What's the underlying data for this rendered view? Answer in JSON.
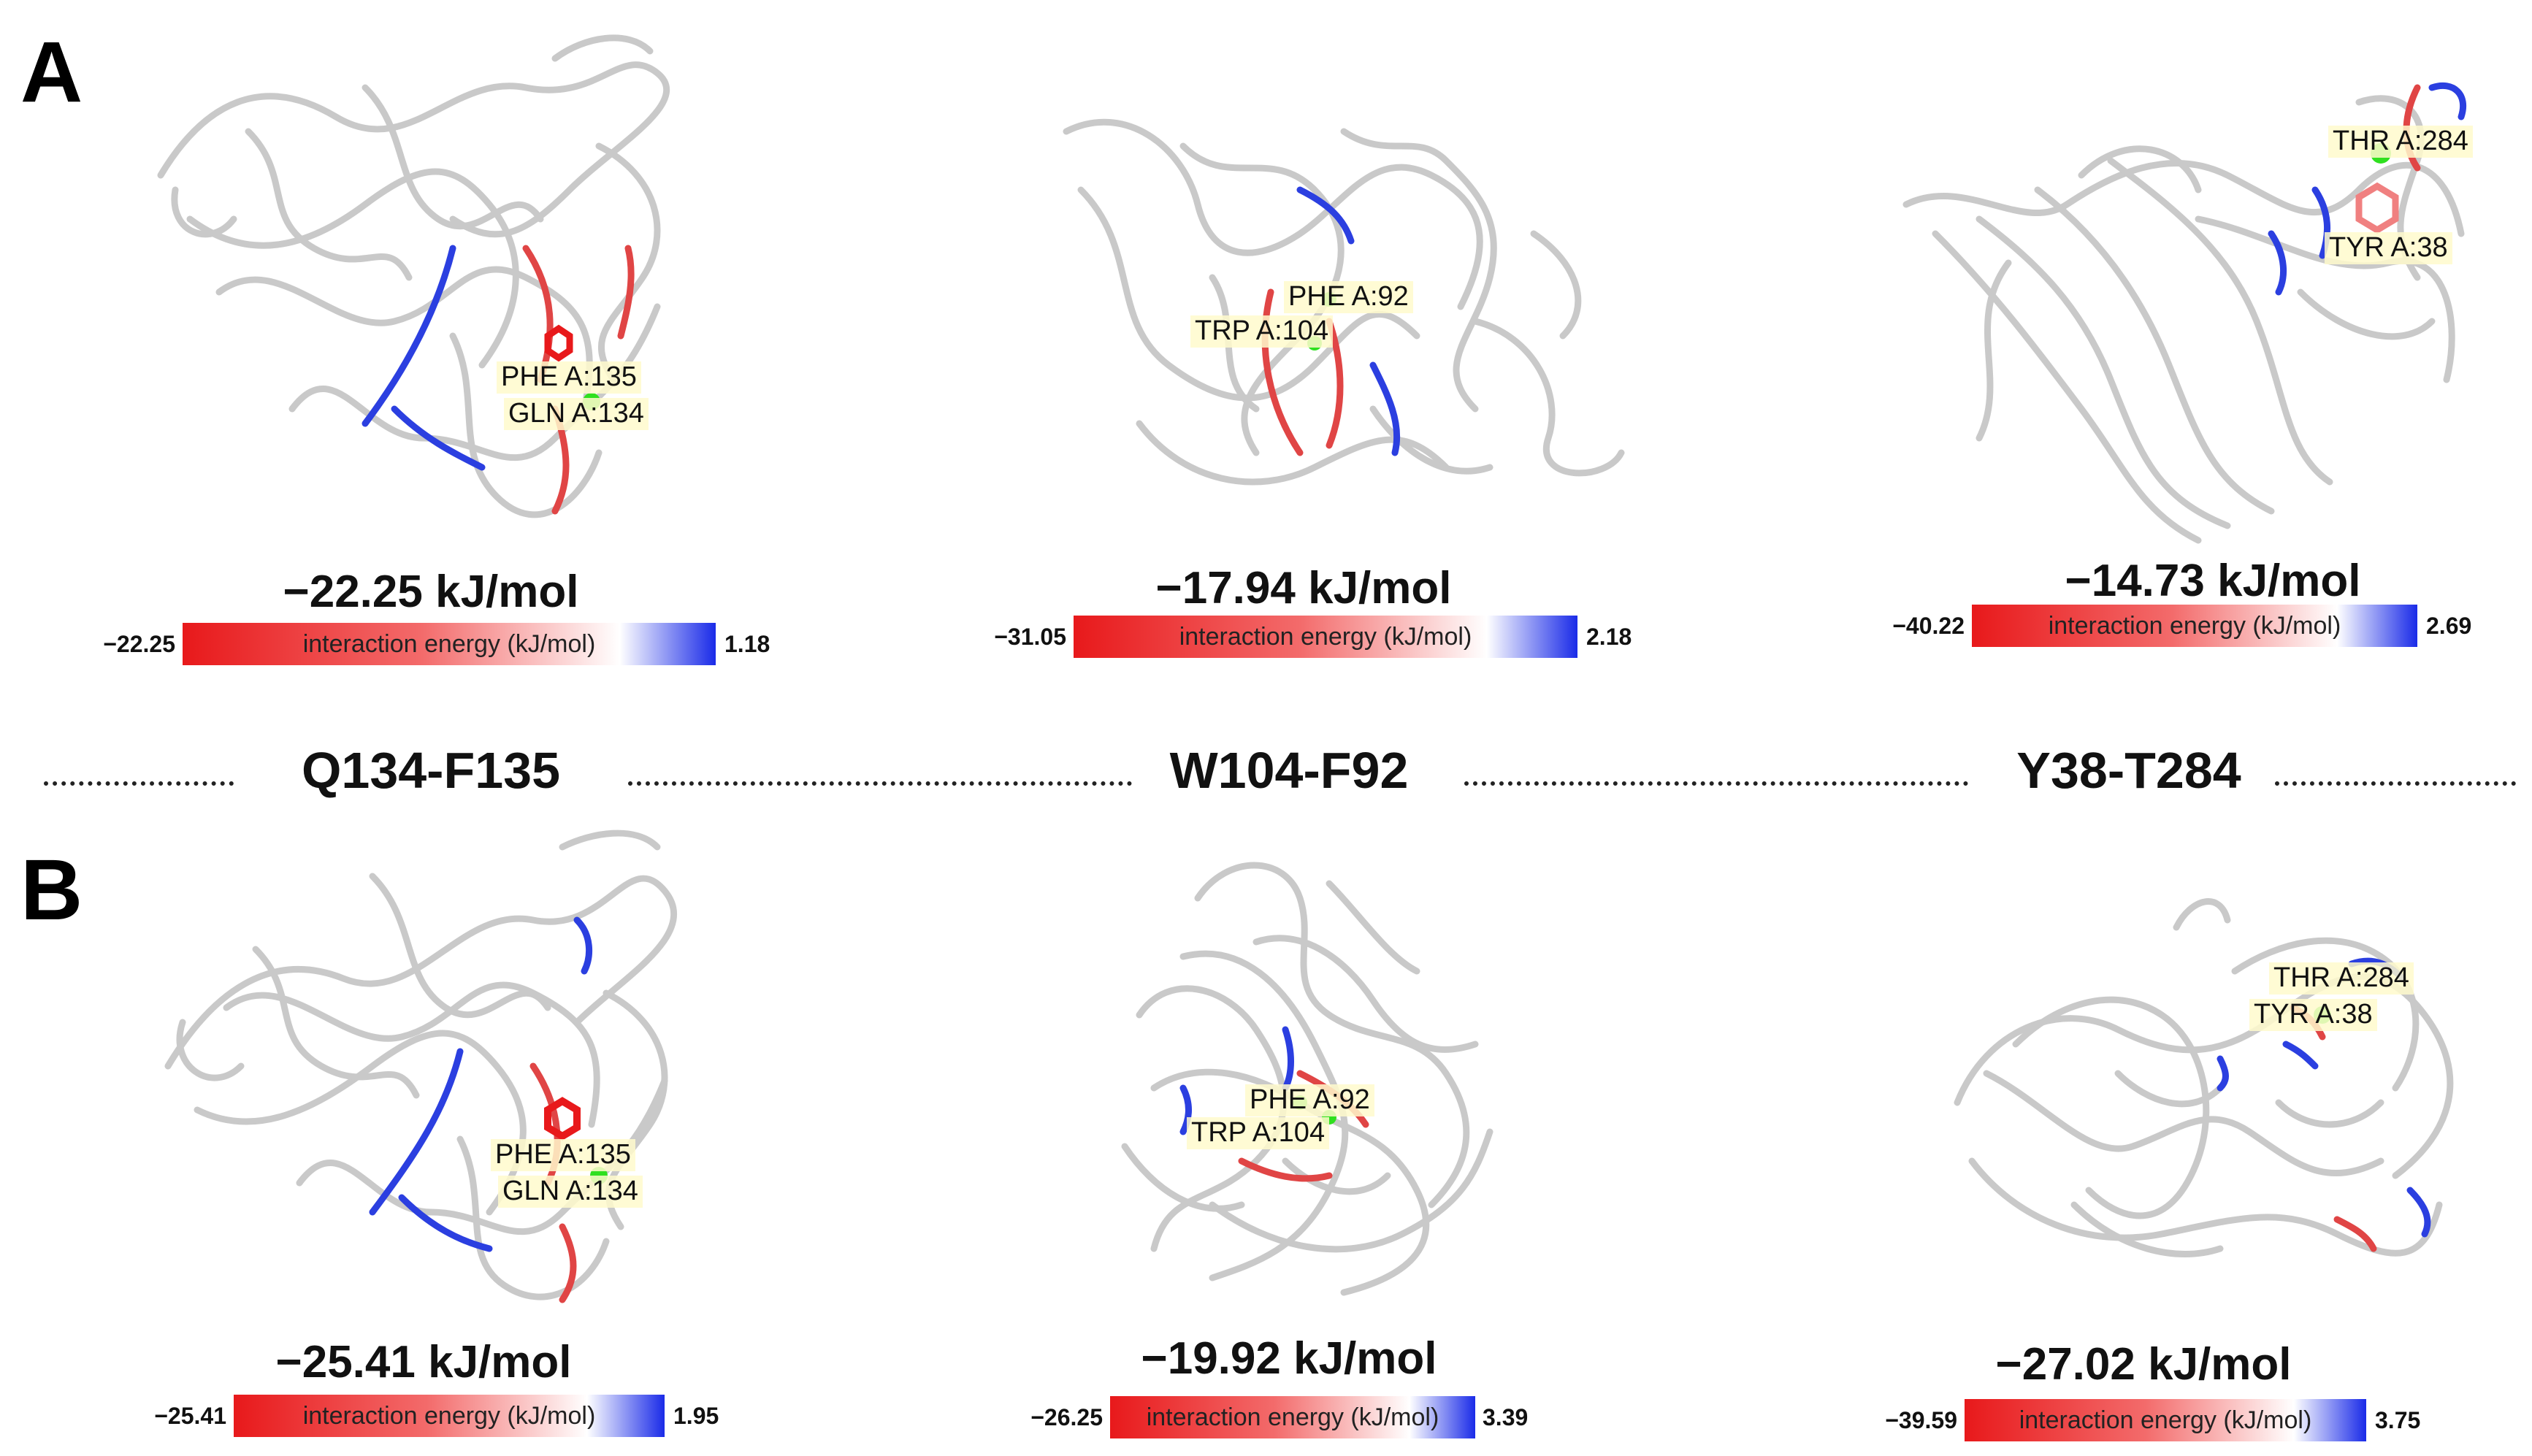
{
  "panels": [
    {
      "letter": "A"
    },
    {
      "letter": "B"
    }
  ],
  "pairs": [
    "Q134-F135",
    "W104-F92",
    "Y38-T284"
  ],
  "scale_title": "interaction energy (kJ/mol)",
  "structures": {
    "A1": {
      "energy": "−22.25 kJ/mol",
      "min": "−22.25",
      "max": "1.18",
      "labels": [
        "PHE A:135",
        "GLN A:134"
      ]
    },
    "A2": {
      "energy": "−17.94 kJ/mol",
      "min": "−31.05",
      "max": "2.18",
      "labels": [
        "PHE A:92",
        "TRP A:104"
      ]
    },
    "A3": {
      "energy": "−14.73 kJ/mol",
      "min": "−40.22",
      "max": "2.69",
      "labels": [
        "THR A:284",
        "TYR A:38"
      ]
    },
    "B1": {
      "energy": "−25.41 kJ/mol",
      "min": "−25.41",
      "max": "1.95",
      "labels": [
        "PHE A:135",
        "GLN A:134"
      ]
    },
    "B2": {
      "energy": "−19.92 kJ/mol",
      "min": "−26.25",
      "max": "3.39",
      "labels": [
        "PHE A:92",
        "TRP A:104"
      ]
    },
    "B3": {
      "energy": "−27.02 kJ/mol",
      "min": "−39.59",
      "max": "3.75",
      "labels": [
        "THR A:284",
        "TYR A:38"
      ]
    }
  },
  "colors": {
    "attractive": "#e8191b",
    "neutral": "#ffffff",
    "repulsive": "#1a2be8",
    "backbone": "#bdbdbd",
    "contact": "#2fe01f"
  }
}
